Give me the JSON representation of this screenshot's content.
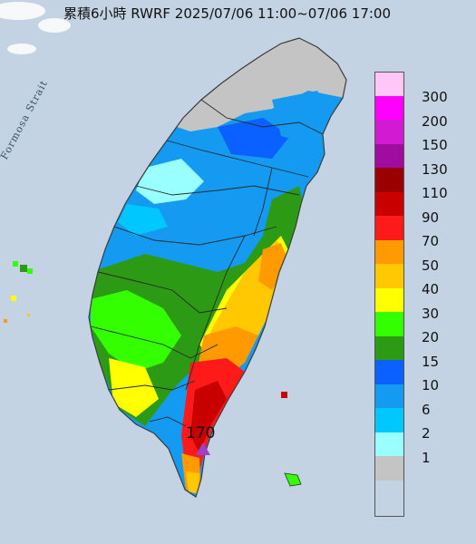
{
  "title": "累積6小時 RWRF 2025/07/06 11:00~07/06 17:00",
  "sea_label": "Formosa Strait",
  "max_marker": {
    "label": "170",
    "color": "#a040c8",
    "icon": "triangle-marker-icon"
  },
  "colors": {
    "sea": "#c9d7e6",
    "coast": "#3b3b3b",
    "county_border": "#2a2a2a"
  },
  "legend": [
    {
      "label": "300",
      "color": "#ffc6f7"
    },
    {
      "label": "200",
      "color": "#ff00ff"
    },
    {
      "label": "150",
      "color": "#d21ad2"
    },
    {
      "label": "130",
      "color": "#a00ca0"
    },
    {
      "label": "110",
      "color": "#9a0000"
    },
    {
      "label": "90",
      "color": "#c80000"
    },
    {
      "label": "70",
      "color": "#ff1a1a"
    },
    {
      "label": "50",
      "color": "#ff9a00"
    },
    {
      "label": "40",
      "color": "#ffc800"
    },
    {
      "label": "30",
      "color": "#ffff00"
    },
    {
      "label": "20",
      "color": "#33ff00"
    },
    {
      "label": "15",
      "color": "#2c9a14"
    },
    {
      "label": "10",
      "color": "#0a61ff"
    },
    {
      "label": "6",
      "color": "#149af0"
    },
    {
      "label": "2",
      "color": "#00c8ff"
    },
    {
      "label": "1",
      "color": "#99ffff"
    },
    {
      "label": "",
      "color": "#c4c4c4"
    }
  ]
}
